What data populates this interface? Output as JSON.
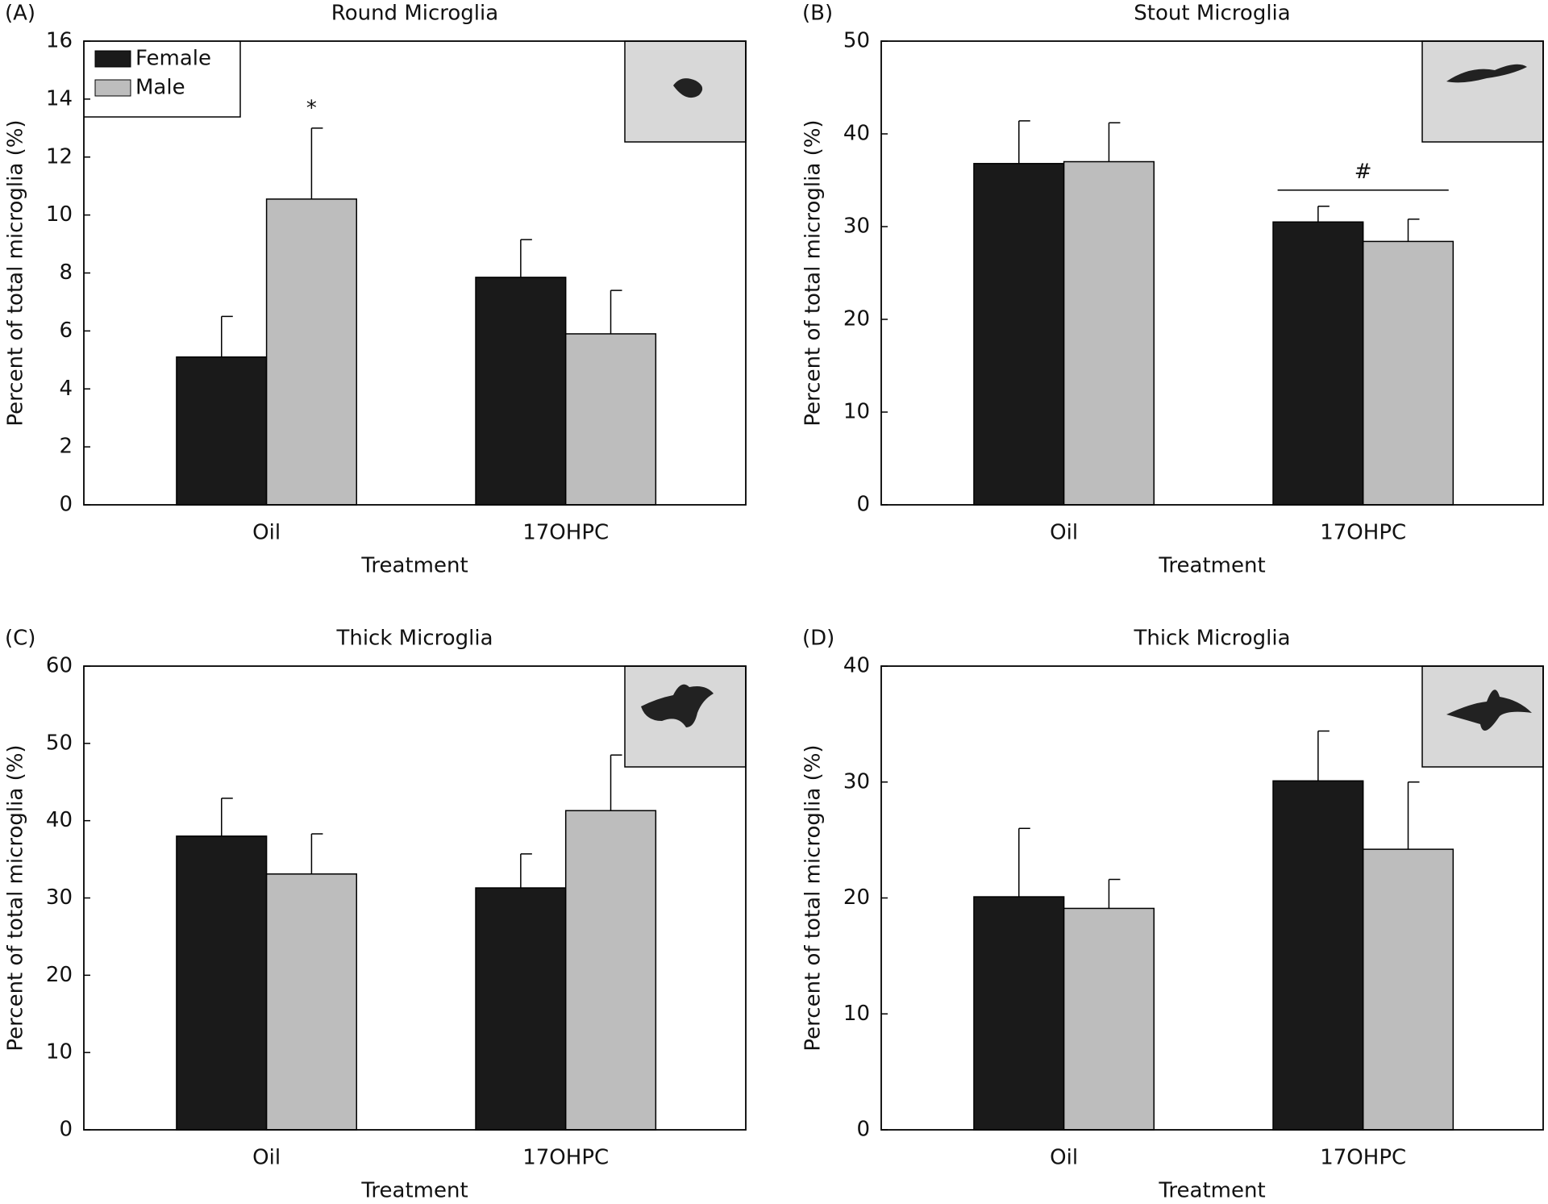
{
  "chart_data": [
    {
      "type": "bar",
      "panel": "(A)",
      "title": "Round Microglia",
      "x_label": "Treatment",
      "y_label": "Percent of total microglia (%)",
      "categories": [
        "Oil",
        "17OHPC"
      ],
      "series": [
        {
          "name": "Female",
          "color": "#1a1a1a",
          "values": [
            5.1,
            7.85
          ],
          "errors": [
            1.4,
            1.3
          ]
        },
        {
          "name": "Male",
          "color": "#bdbdbd",
          "values": [
            10.55,
            5.9
          ],
          "errors": [
            2.45,
            1.5
          ]
        }
      ],
      "ylim": [
        0,
        16
      ],
      "yticks": [
        0,
        2,
        4,
        6,
        8,
        10,
        12,
        14,
        16
      ],
      "legend": "upper left",
      "annotation": "*"
    },
    {
      "type": "bar",
      "panel": "(B)",
      "title": "Stout Microglia",
      "x_label": "Treatment",
      "y_label": "Percent of total microglia (%)",
      "categories": [
        "Oil",
        "17OHPC"
      ],
      "series": [
        {
          "name": "Female",
          "color": "#1a1a1a",
          "values": [
            36.8,
            30.5
          ],
          "errors": [
            4.6,
            1.7
          ]
        },
        {
          "name": "Male",
          "color": "#bdbdbd",
          "values": [
            37,
            28.4
          ],
          "errors": [
            4.2,
            2.4
          ]
        }
      ],
      "ylim": [
        0,
        50
      ],
      "yticks": [
        0,
        10,
        20,
        30,
        40,
        50
      ],
      "annotation": "#"
    },
    {
      "type": "bar",
      "panel": "(C)",
      "title": "Thick Microglia",
      "x_label": "Treatment",
      "y_label": "Percent of total microglia (%)",
      "categories": [
        "Oil",
        "17OHPC"
      ],
      "series": [
        {
          "name": "Female",
          "color": "#1a1a1a",
          "values": [
            38,
            31.3
          ],
          "errors": [
            4.9,
            4.4
          ]
        },
        {
          "name": "Male",
          "color": "#bdbdbd",
          "values": [
            33.1,
            41.3
          ],
          "errors": [
            5.2,
            7.2
          ]
        }
      ],
      "ylim": [
        0,
        60
      ],
      "yticks": [
        0,
        10,
        20,
        30,
        40,
        50,
        60
      ]
    },
    {
      "type": "bar",
      "panel": "(D)",
      "title": "Thick Microglia",
      "x_label": "Treatment",
      "y_label": "Percent of total microglia (%)",
      "categories": [
        "Oil",
        "17OHPC"
      ],
      "series": [
        {
          "name": "Female",
          "color": "#1a1a1a",
          "values": [
            20.1,
            30.1
          ],
          "errors": [
            5.9,
            4.3
          ]
        },
        {
          "name": "Male",
          "color": "#bdbdbd",
          "values": [
            19.1,
            24.2
          ],
          "errors": [
            2.5,
            5.8
          ]
        }
      ],
      "ylim": [
        0,
        40
      ],
      "yticks": [
        0,
        10,
        20,
        30,
        40
      ]
    }
  ]
}
